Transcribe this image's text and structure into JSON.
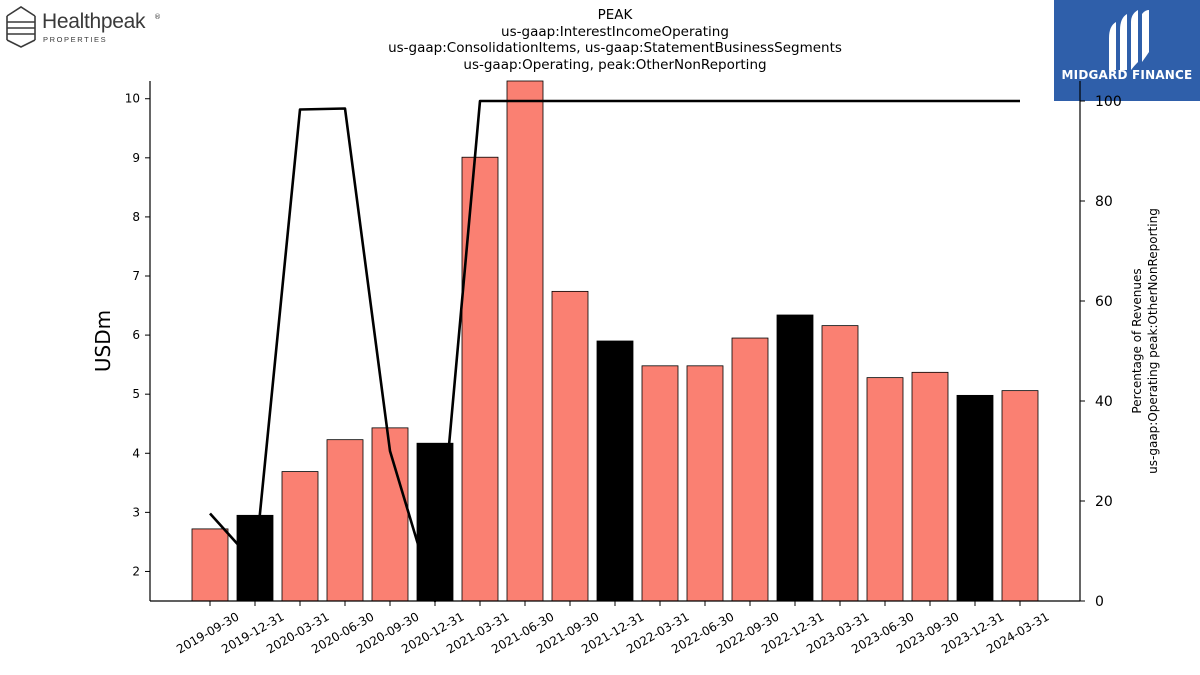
{
  "logos": {
    "left": {
      "name": "Healthpeak",
      "reg": "®",
      "sub": "PROPERTIES",
      "icon": "healthpeak-logo-icon"
    },
    "right": {
      "name": "MIDGARD FINANCE",
      "icon": "midgard-logo-icon",
      "background": "#2f5faa"
    }
  },
  "title_lines": [
    "PEAK",
    "us-gaap:InterestIncomeOperating",
    "us-gaap:ConsolidationItems, us-gaap:StatementBusinessSegments",
    "us-gaap:Operating, peak:OtherNonReporting"
  ],
  "chart_data": {
    "type": "bar",
    "categories": [
      "2019-09-30",
      "2019-12-31",
      "2020-03-31",
      "2020-06-30",
      "2020-09-30",
      "2020-12-31",
      "2021-03-31",
      "2021-06-30",
      "2021-09-30",
      "2021-12-31",
      "2022-03-31",
      "2022-06-30",
      "2022-09-30",
      "2022-12-31",
      "2023-03-31",
      "2023-06-30",
      "2023-09-30",
      "2023-12-31",
      "2024-03-31"
    ],
    "series": [
      {
        "kind": "bar",
        "values": [
          2.72,
          2.95,
          3.69,
          4.23,
          4.43,
          4.17,
          9.01,
          10.3,
          6.74,
          5.9,
          5.48,
          5.48,
          5.95,
          6.34,
          6.16,
          5.28,
          5.37,
          4.98,
          5.06
        ],
        "colors": [
          "#fa8072",
          "#000000",
          "#fa8072",
          "#fa8072",
          "#fa8072",
          "#000000",
          "#fa8072",
          "#fa8072",
          "#fa8072",
          "#000000",
          "#fa8072",
          "#fa8072",
          "#fa8072",
          "#000000",
          "#fa8072",
          "#fa8072",
          "#fa8072",
          "#000000",
          "#fa8072"
        ]
      },
      {
        "kind": "line",
        "axis": "right",
        "values": [
          17.5,
          7.5,
          98.3,
          98.5,
          30,
          0,
          100,
          100,
          100,
          100,
          100,
          100,
          100,
          100,
          100,
          100,
          100,
          100,
          100
        ],
        "color": "#000000"
      }
    ],
    "ylabel": "USDm",
    "ylim": [
      1.5,
      10.3
    ],
    "yticks": [
      2,
      3,
      4,
      5,
      6,
      7,
      8,
      9,
      10
    ],
    "y2label_lines": [
      "Percentage of Revenues",
      "us-gaap:Operating peak:OtherNonReporting"
    ],
    "y2lim": [
      0,
      104
    ],
    "y2ticks": [
      0,
      20,
      40,
      60,
      80,
      100
    ],
    "grid": false,
    "legend": "none"
  }
}
